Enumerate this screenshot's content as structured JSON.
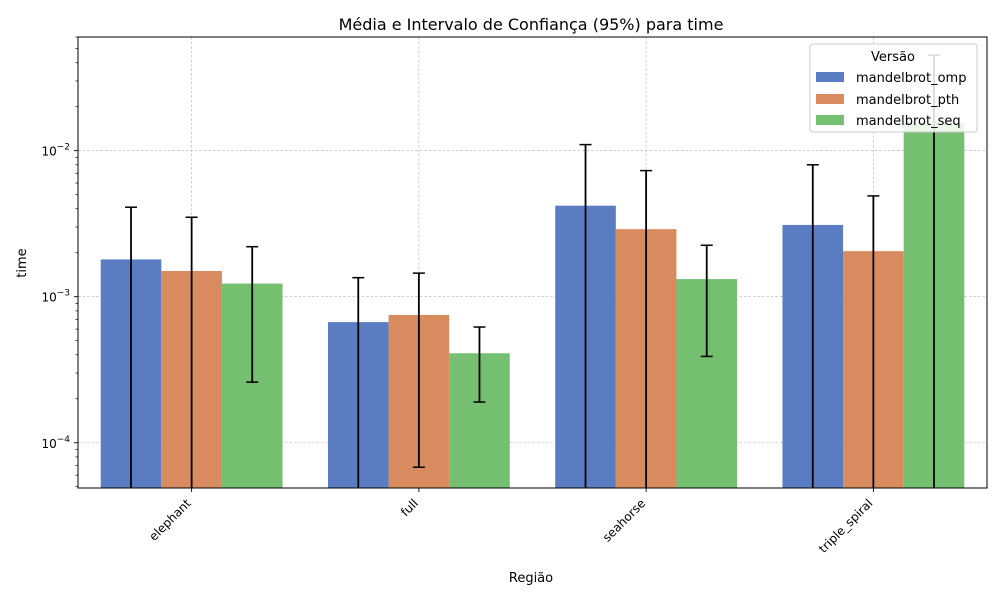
{
  "chart_data": {
    "type": "bar",
    "title": "Média e Intervalo de Confiança (95%) para time",
    "xlabel": "Região",
    "ylabel": "time",
    "yscale": "log",
    "ylim": [
      4.9e-05,
      0.06
    ],
    "yticks": [
      {
        "value": 0.0001,
        "base": "10",
        "exp": "−4"
      },
      {
        "value": 0.001,
        "base": "10",
        "exp": "−3"
      },
      {
        "value": 0.01,
        "base": "10",
        "exp": "−2"
      }
    ],
    "grid": true,
    "legend": {
      "title": "Versão",
      "position": "top-right"
    },
    "categories": [
      "elephant",
      "full",
      "seahorse",
      "triple_spiral"
    ],
    "series": [
      {
        "name": "mandelbrot_omp",
        "color": "#5a7cc2",
        "values": [
          0.0018,
          0.00067,
          0.0042,
          0.0031
        ],
        "ci_low": [
          1e-05,
          1e-05,
          1e-05,
          1e-05
        ],
        "ci_high": [
          0.0041,
          0.00135,
          0.011,
          0.008
        ]
      },
      {
        "name": "mandelbrot_pth",
        "color": "#d88b5e",
        "values": [
          0.0015,
          0.00075,
          0.0029,
          0.00205
        ],
        "ci_low": [
          1e-05,
          6.8e-05,
          1e-05,
          1e-05
        ],
        "ci_high": [
          0.0035,
          0.00145,
          0.0073,
          0.0049
        ]
      },
      {
        "name": "mandelbrot_seq",
        "color": "#74c070",
        "values": [
          0.00123,
          0.00041,
          0.00132,
          0.0155
        ],
        "ci_low": [
          0.00026,
          0.00019,
          0.00039,
          1e-05
        ],
        "ci_high": [
          0.0022,
          0.00062,
          0.00225,
          0.045
        ]
      }
    ]
  }
}
